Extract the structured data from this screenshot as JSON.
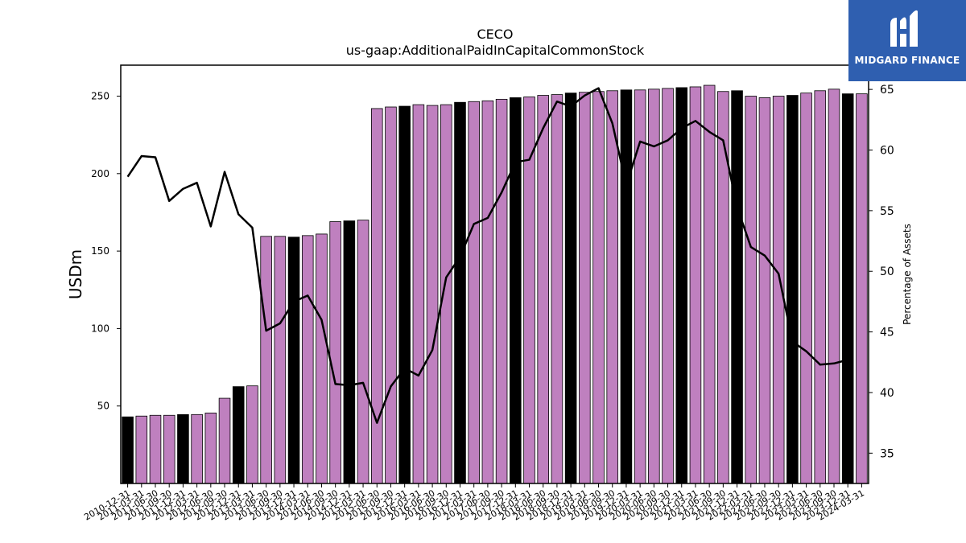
{
  "logo": {
    "text": "MIDGARD FINANCE",
    "color": "#2f5fb0"
  },
  "chart_data": {
    "type": "bar",
    "title": "CECO",
    "subtitle": "us-gaap:AdditionalPaidInCapitalCommonStock",
    "ylabel": "USDm",
    "y2label": "Percentage of Assets",
    "ylim": [
      0,
      270
    ],
    "y2lim": [
      32.5,
      67
    ],
    "yticks": [
      50,
      100,
      150,
      200,
      250
    ],
    "y2ticks": [
      35,
      40,
      45,
      50,
      55,
      60,
      65
    ],
    "colors": {
      "annual": "#000000",
      "quarter": "#bf80bf",
      "line": "#000000"
    },
    "categories": [
      "2010-12-31",
      "2011-03-31",
      "2011-06-30",
      "2011-09-30",
      "2011-12-31",
      "2012-03-31",
      "2012-06-30",
      "2012-09-30",
      "2012-12-31",
      "2013-03-31",
      "2013-06-30",
      "2013-09-30",
      "2013-12-31",
      "2014-03-31",
      "2014-06-30",
      "2014-09-30",
      "2014-12-31",
      "2015-03-31",
      "2015-06-30",
      "2015-09-30",
      "2015-12-31",
      "2016-03-31",
      "2016-06-30",
      "2016-09-30",
      "2016-12-31",
      "2017-03-31",
      "2017-06-30",
      "2017-09-30",
      "2017-12-31",
      "2018-03-31",
      "2018-06-30",
      "2018-09-30",
      "2018-12-31",
      "2019-03-31",
      "2019-06-30",
      "2019-09-30",
      "2019-12-31",
      "2020-03-31",
      "2020-06-30",
      "2020-09-30",
      "2020-12-31",
      "2021-03-31",
      "2021-06-30",
      "2021-09-30",
      "2021-12-31",
      "2022-03-31",
      "2022-06-30",
      "2022-09-30",
      "2022-12-31",
      "2023-03-31",
      "2023-06-30",
      "2023-09-30",
      "2023-12-31",
      "2024-03-31"
    ],
    "series": [
      {
        "values": [
          43,
          43.5,
          44,
          44,
          44.5,
          44.5,
          45.5,
          55,
          62.5,
          63,
          159.5,
          159.5,
          159,
          160,
          161,
          169,
          169.5,
          170,
          242,
          243,
          243.5,
          244.5,
          244,
          244.5,
          246,
          246.5,
          247,
          248,
          249,
          249.5,
          250.5,
          251,
          252,
          252.5,
          253,
          253.5,
          254,
          254,
          254.5,
          255,
          255.5,
          256,
          257,
          253,
          253.5,
          250,
          249,
          250,
          250.5,
          252,
          253.5,
          254.5,
          251.5,
          251.5
        ]
      },
      {
        "axis": "right",
        "values": [
          57.8,
          59.5,
          59.4,
          55.8,
          56.8,
          57.3,
          53.7,
          58.2,
          54.7,
          53.6,
          45.1,
          45.7,
          47.5,
          48,
          46,
          40.7,
          40.6,
          40.8,
          37.5,
          40.5,
          42,
          41.4,
          43.5,
          49.5,
          51.2,
          53.9,
          54.4,
          56.5,
          59,
          59.2,
          61.8,
          64,
          63.6,
          64.5,
          65.1,
          62.2,
          57.1,
          60.7,
          60.3,
          60.8,
          61.8,
          62.4,
          61.5,
          60.8,
          55.3,
          52,
          51.3,
          49.8,
          44.2,
          43.4,
          42.3,
          42.4,
          42.7,
          null
        ]
      }
    ]
  }
}
